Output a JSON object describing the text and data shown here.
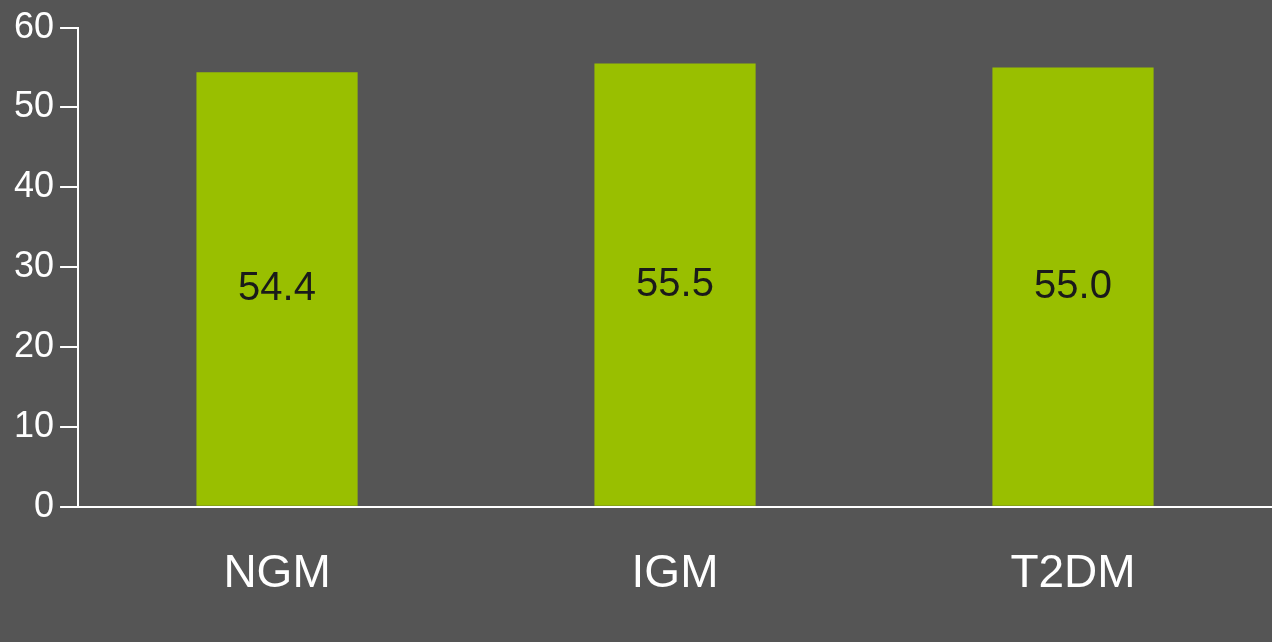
{
  "chart_data": {
    "type": "bar",
    "categories": [
      "NGM",
      "IGM",
      "T2DM"
    ],
    "values": [
      54.4,
      55.5,
      55.0
    ],
    "value_labels": [
      "54.4",
      "55.5",
      "55.0"
    ],
    "color": "#99bf00",
    "ylim": [
      0,
      60
    ],
    "yticks": [
      0,
      10,
      20,
      30,
      40,
      50,
      60
    ],
    "grid": false,
    "legend": false
  }
}
